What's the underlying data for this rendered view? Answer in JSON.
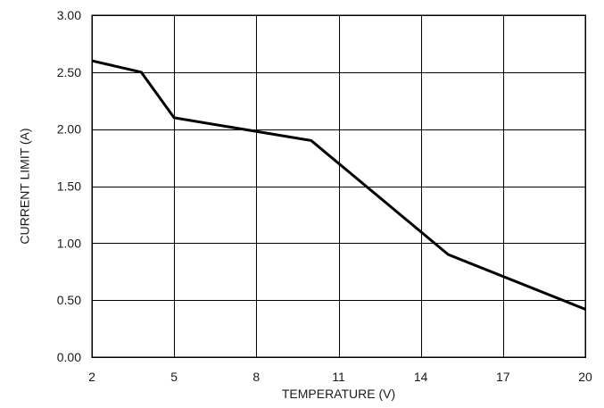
{
  "chart_data": {
    "type": "line",
    "title": "",
    "xlabel": "TEMPERATURE (V)",
    "ylabel": "CURRENT LIMIT (A)",
    "xlim": [
      2,
      20
    ],
    "ylim": [
      0,
      3
    ],
    "x_ticks": [
      2,
      5,
      8,
      11,
      14,
      17,
      20
    ],
    "y_ticks": [
      0,
      0.5,
      1,
      1.5,
      2,
      2.5,
      3
    ],
    "x_tick_labels": [
      "2",
      "5",
      "8",
      "11",
      "14",
      "17",
      "20"
    ],
    "y_tick_labels": [
      "0.00",
      "0.50",
      "1.00",
      "1.50",
      "2.00",
      "2.50",
      "3.00"
    ],
    "grid": true,
    "legend": "none",
    "series": [
      {
        "x": [
          2,
          3.8,
          5,
          10,
          15,
          20
        ],
        "y": [
          2.6,
          2.5,
          2.1,
          1.9,
          0.9,
          0.42
        ],
        "color": "#000000"
      }
    ]
  }
}
